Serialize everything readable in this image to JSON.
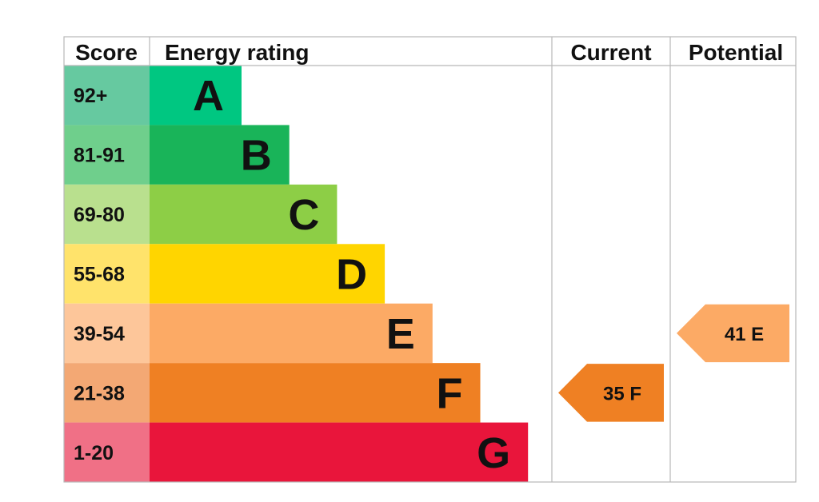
{
  "chart_data": {
    "type": "bar",
    "title": "",
    "headers": {
      "score": "Score",
      "energy_rating": "Energy rating",
      "current": "Current",
      "potential": "Potential"
    },
    "bands": [
      {
        "score": "92+",
        "letter": "A",
        "bar_color": "#00c781",
        "score_color": "#66c9a0"
      },
      {
        "score": "81-91",
        "letter": "B",
        "bar_color": "#19b459",
        "score_color": "#6fcf8c"
      },
      {
        "score": "69-80",
        "letter": "C",
        "bar_color": "#8dce46",
        "score_color": "#b9e08e"
      },
      {
        "score": "55-68",
        "letter": "D",
        "bar_color": "#ffd500",
        "score_color": "#ffe36b"
      },
      {
        "score": "39-54",
        "letter": "E",
        "bar_color": "#fcaa65",
        "score_color": "#fdc69a"
      },
      {
        "score": "21-38",
        "letter": "F",
        "bar_color": "#ef8023",
        "score_color": "#f3a874"
      },
      {
        "score": "1-20",
        "letter": "G",
        "bar_color": "#e9153b",
        "score_color": "#f07086"
      }
    ],
    "current": {
      "value": 35,
      "letter": "F",
      "label": "35  F",
      "color": "#ef8023"
    },
    "potential": {
      "value": 41,
      "letter": "E",
      "label": "41  E",
      "color": "#fcaa65"
    },
    "grid_color": "#b8b8b8"
  }
}
